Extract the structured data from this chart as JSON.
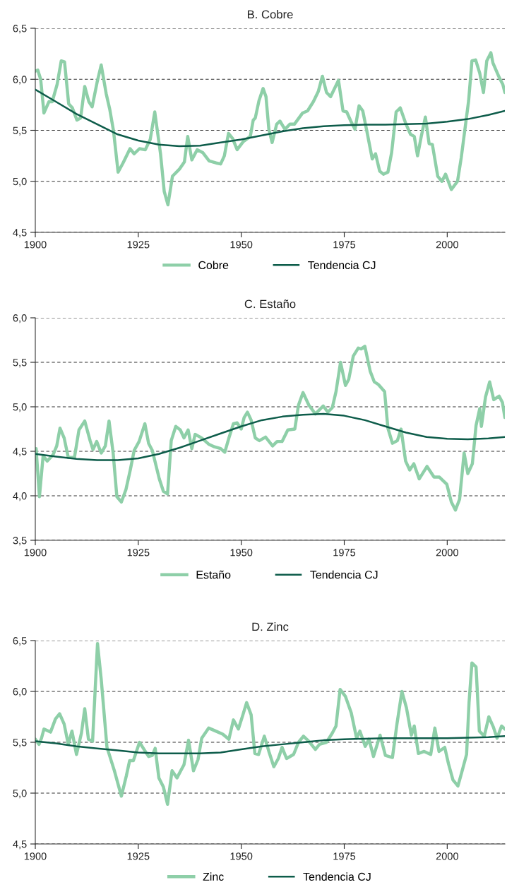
{
  "chart_data": [
    {
      "type": "line",
      "title": "B. Cobre",
      "xlim": [
        1900,
        2014
      ],
      "xticks": [
        1900,
        1925,
        1950,
        1975,
        2000
      ],
      "ylim": [
        4.5,
        6.5
      ],
      "yticks": [
        {
          "value": 4.5,
          "label": "4,5"
        },
        {
          "value": 5.0,
          "label": "5,0"
        },
        {
          "value": 5.5,
          "label": "5,5"
        },
        {
          "value": 6.0,
          "label": "6,0"
        },
        {
          "value": 6.5,
          "label": "6,5"
        }
      ],
      "grid": "y",
      "legend": "bottom",
      "series": [
        {
          "name": "Cobre",
          "color": "#8ecfa8",
          "x": [
            1900,
            1900.6,
            1901.3,
            1902.1,
            1903.3,
            1904.1,
            1905.3,
            1906.3,
            1907.1,
            1908.1,
            1909,
            1910.1,
            1911,
            1912,
            1913,
            1913.8,
            1915,
            1916,
            1917.2,
            1918.1,
            1919,
            1920.1,
            1921.3,
            1923,
            1924,
            1925.3,
            1926.7,
            1927.9,
            1929,
            1930.4,
            1931.3,
            1932.2,
            1933.3,
            1935,
            1936.2,
            1937,
            1938,
            1939.3,
            1940.7,
            1942.2,
            1943.9,
            1945,
            1945.9,
            1946.9,
            1947.9,
            1949,
            1950.5,
            1952.2,
            1952.9,
            1953.4,
            1954.3,
            1955.3,
            1956,
            1956.7,
            1957.5,
            1958.6,
            1959.4,
            1960.6,
            1961.8,
            1962.9,
            1964.9,
            1966.1,
            1967.5,
            1968.7,
            1969.7,
            1970.7,
            1971.7,
            1973.6,
            1974.7,
            1975.6,
            1976.6,
            1977.6,
            1978.6,
            1979.5,
            1980.5,
            1981.8,
            1982.6,
            1983.6,
            1984.5,
            1985.6,
            1986.5,
            1987.6,
            1988.6,
            1989.9,
            1991.1,
            1992,
            1992.8,
            1993.7,
            1994.7,
            1995.6,
            1996.4,
            1997.7,
            1998.7,
            1999.6,
            2001,
            2002.5,
            2003.4,
            2004.3,
            2005.2,
            2006,
            2006.9,
            2007.9,
            2008.8,
            2009.6,
            2010.6,
            2011.1,
            2012.6,
            2013.5,
            2014
          ],
          "values": [
            6.08,
            6.09,
            6.0,
            5.67,
            5.78,
            5.78,
            5.95,
            6.18,
            6.17,
            5.76,
            5.72,
            5.6,
            5.62,
            5.93,
            5.78,
            5.73,
            5.97,
            6.14,
            5.86,
            5.7,
            5.49,
            5.09,
            5.18,
            5.32,
            5.27,
            5.32,
            5.31,
            5.41,
            5.68,
            5.27,
            4.9,
            4.77,
            5.05,
            5.12,
            5.19,
            5.44,
            5.21,
            5.31,
            5.28,
            5.2,
            5.18,
            5.17,
            5.25,
            5.47,
            5.42,
            5.31,
            5.39,
            5.44,
            5.6,
            5.62,
            5.79,
            5.91,
            5.83,
            5.51,
            5.38,
            5.56,
            5.59,
            5.51,
            5.56,
            5.56,
            5.67,
            5.69,
            5.78,
            5.88,
            6.03,
            5.87,
            5.83,
            5.99,
            5.69,
            5.68,
            5.59,
            5.51,
            5.74,
            5.69,
            5.49,
            5.22,
            5.27,
            5.1,
            5.07,
            5.09,
            5.28,
            5.68,
            5.72,
            5.57,
            5.46,
            5.44,
            5.25,
            5.44,
            5.63,
            5.37,
            5.36,
            5.05,
            5.0,
            5.07,
            4.92,
            5.0,
            5.23,
            5.51,
            5.79,
            6.18,
            6.19,
            6.06,
            5.87,
            6.18,
            6.26,
            6.16,
            6.02,
            5.95,
            5.87
          ]
        },
        {
          "name": "Tendencia CJ",
          "color": "#0d5c4a",
          "x": [
            1900,
            1905,
            1910,
            1915,
            1920,
            1925,
            1930,
            1935,
            1940,
            1945,
            1950,
            1955,
            1960,
            1965,
            1970,
            1975,
            1980,
            1985,
            1990,
            1995,
            2000,
            2005,
            2010,
            2014
          ],
          "values": [
            5.9,
            5.78,
            5.66,
            5.56,
            5.46,
            5.4,
            5.36,
            5.345,
            5.35,
            5.38,
            5.41,
            5.45,
            5.49,
            5.52,
            5.54,
            5.55,
            5.555,
            5.555,
            5.56,
            5.565,
            5.585,
            5.61,
            5.65,
            5.69
          ]
        }
      ]
    },
    {
      "type": "line",
      "title": "C. Estaño",
      "xlim": [
        1900,
        2014
      ],
      "xticks": [
        1900,
        1925,
        1950,
        1975,
        2000
      ],
      "ylim": [
        3.5,
        6.0
      ],
      "yticks": [
        {
          "value": 3.5,
          "label": "3,5"
        },
        {
          "value": 4.0,
          "label": "4,0"
        },
        {
          "value": 4.5,
          "label": "4,5"
        },
        {
          "value": 5.0,
          "label": "5,0"
        },
        {
          "value": 5.5,
          "label": "5,5"
        },
        {
          "value": 6.0,
          "label": "6,0"
        }
      ],
      "grid": "y",
      "legend": "bottom",
      "series": [
        {
          "name": "Estaño",
          "color": "#8ecfa8",
          "x": [
            1900.2,
            1901,
            1901.9,
            1902.9,
            1904.3,
            1905.2,
            1906,
            1907,
            1908,
            1909.5,
            1910.6,
            1912,
            1913.3,
            1914,
            1914.9,
            1916,
            1917,
            1917.9,
            1918.9,
            1919.8,
            1920.9,
            1922,
            1923.1,
            1924,
            1925.2,
            1926.6,
            1927.5,
            1928.4,
            1930.1,
            1931.1,
            1932.1,
            1933,
            1934.1,
            1935.2,
            1936.1,
            1937.1,
            1938,
            1938.8,
            1940.4,
            1942.1,
            1943.5,
            1945,
            1946,
            1947,
            1948.1,
            1949,
            1950,
            1950.7,
            1951.5,
            1952.4,
            1953.4,
            1954.4,
            1955.9,
            1957.6,
            1958.7,
            1959.9,
            1961.3,
            1963,
            1963.9,
            1965,
            1966.4,
            1968,
            1969.9,
            1971,
            1972.1,
            1973,
            1974.1,
            1975.3,
            1976.1,
            1977.2,
            1978.4,
            1979.1,
            1980,
            1981.3,
            1982.3,
            1983.3,
            1984.8,
            1985.6,
            1986.7,
            1987.9,
            1988.8,
            1989.9,
            1990.9,
            1991.9,
            1993.2,
            1995.1,
            1996.8,
            1998.1,
            1999.9,
            2001,
            2002,
            2003,
            2004.1,
            2005,
            2006.1,
            2007,
            2007.9,
            2008.3,
            2009.3,
            2010.3,
            2011.3,
            2012.6,
            2013.4,
            2014
          ],
          "values": [
            4.53,
            3.99,
            4.45,
            4.39,
            4.46,
            4.56,
            4.76,
            4.65,
            4.43,
            4.43,
            4.74,
            4.84,
            4.62,
            4.52,
            4.61,
            4.48,
            4.56,
            4.84,
            4.48,
            3.99,
            3.93,
            4.07,
            4.3,
            4.51,
            4.61,
            4.81,
            4.59,
            4.51,
            4.19,
            4.05,
            4.02,
            4.62,
            4.78,
            4.74,
            4.65,
            4.74,
            4.53,
            4.69,
            4.65,
            4.58,
            4.55,
            4.53,
            4.49,
            4.65,
            4.81,
            4.82,
            4.75,
            4.88,
            4.94,
            4.85,
            4.65,
            4.62,
            4.66,
            4.56,
            4.61,
            4.61,
            4.74,
            4.75,
            5.02,
            5.16,
            5.02,
            4.92,
            5.01,
            4.94,
            4.99,
            5.17,
            5.5,
            5.24,
            5.31,
            5.57,
            5.66,
            5.65,
            5.68,
            5.4,
            5.28,
            5.25,
            5.17,
            4.76,
            4.59,
            4.62,
            4.75,
            4.39,
            4.29,
            4.36,
            4.19,
            4.33,
            4.21,
            4.21,
            4.13,
            3.93,
            3.84,
            3.96,
            4.48,
            4.25,
            4.36,
            4.79,
            4.98,
            4.78,
            5.11,
            5.28,
            5.08,
            5.12,
            5.05,
            4.88
          ]
        },
        {
          "name": "Tendencia CJ",
          "color": "#0d5c4a",
          "x": [
            1900,
            1905,
            1910,
            1915,
            1920,
            1925,
            1930,
            1935,
            1940,
            1945,
            1950,
            1955,
            1960,
            1965,
            1970,
            1975,
            1980,
            1985,
            1990,
            1995,
            2000,
            2005,
            2010,
            2014
          ],
          "values": [
            4.47,
            4.44,
            4.415,
            4.4,
            4.4,
            4.42,
            4.47,
            4.54,
            4.62,
            4.7,
            4.78,
            4.85,
            4.89,
            4.91,
            4.92,
            4.9,
            4.85,
            4.78,
            4.71,
            4.66,
            4.64,
            4.635,
            4.645,
            4.66
          ]
        }
      ]
    },
    {
      "type": "line",
      "title": "D. Zinc",
      "xlim": [
        1900,
        2014
      ],
      "xticks": [
        1900,
        1925,
        1950,
        1975,
        2000
      ],
      "ylim": [
        4.5,
        6.5
      ],
      "yticks": [
        {
          "value": 4.5,
          "label": "4,5"
        },
        {
          "value": 5.0,
          "label": "5,0"
        },
        {
          "value": 5.5,
          "label": "5,5"
        },
        {
          "value": 6.0,
          "label": "6,0"
        },
        {
          "value": 6.5,
          "label": "6,5"
        }
      ],
      "grid": "y",
      "legend": "bottom",
      "series": [
        {
          "name": "Zinc",
          "color": "#8ecfa8",
          "x": [
            1900,
            1900.9,
            1901.5,
            1902.1,
            1903.7,
            1904.9,
            1905.9,
            1907,
            1908,
            1908.9,
            1910,
            1911.2,
            1912,
            1912.9,
            1913.9,
            1915.1,
            1916,
            1917.4,
            1919.2,
            1920.9,
            1922.1,
            1922.9,
            1923.8,
            1925.3,
            1926.4,
            1927.5,
            1928.4,
            1929.1,
            1930,
            1931.1,
            1932.1,
            1933.2,
            1934.4,
            1936.1,
            1937.2,
            1938.4,
            1939.5,
            1940.4,
            1942.1,
            1943.8,
            1945.5,
            1947,
            1948.1,
            1949.3,
            1950.4,
            1951.3,
            1952.4,
            1953.3,
            1954.2,
            1955.6,
            1956.7,
            1957.9,
            1959,
            1959.9,
            1961,
            1962.7,
            1963.9,
            1965.1,
            1966.4,
            1968,
            1969,
            1970.7,
            1972.1,
            1973,
            1974,
            1975.3,
            1976.7,
            1978,
            1978.8,
            1980.1,
            1981,
            1982.1,
            1983.7,
            1985,
            1986.7,
            1987.8,
            1989,
            1990.1,
            1991.3,
            1992,
            1993,
            1994.4,
            1996,
            1997,
            1998,
            1999.4,
            2000.3,
            2001.4,
            2002.6,
            2003.5,
            2004.7,
            2005.3,
            2006,
            2007,
            2007.8,
            2009,
            2010.1,
            2011.2,
            2012.1,
            2013.2,
            2014
          ],
          "values": [
            5.53,
            5.48,
            5.54,
            5.63,
            5.6,
            5.73,
            5.78,
            5.68,
            5.48,
            5.61,
            5.38,
            5.59,
            5.83,
            5.53,
            5.51,
            6.47,
            6.12,
            5.45,
            5.22,
            4.97,
            5.17,
            5.32,
            5.32,
            5.5,
            5.43,
            5.36,
            5.37,
            5.44,
            5.15,
            5.06,
            4.89,
            5.22,
            5.15,
            5.28,
            5.52,
            5.22,
            5.33,
            5.54,
            5.64,
            5.61,
            5.58,
            5.53,
            5.72,
            5.63,
            5.77,
            5.89,
            5.77,
            5.39,
            5.38,
            5.56,
            5.41,
            5.26,
            5.34,
            5.45,
            5.34,
            5.38,
            5.5,
            5.56,
            5.51,
            5.43,
            5.48,
            5.5,
            5.59,
            5.66,
            6.02,
            5.95,
            5.79,
            5.54,
            5.61,
            5.46,
            5.53,
            5.36,
            5.57,
            5.37,
            5.35,
            5.68,
            6.0,
            5.84,
            5.57,
            5.66,
            5.39,
            5.41,
            5.38,
            5.64,
            5.41,
            5.45,
            5.29,
            5.13,
            5.07,
            5.2,
            5.38,
            5.89,
            6.28,
            6.24,
            5.61,
            5.56,
            5.75,
            5.65,
            5.54,
            5.66,
            5.63
          ]
        },
        {
          "name": "Tendencia CJ",
          "color": "#0d5c4a",
          "x": [
            1900,
            1905,
            1910,
            1915,
            1920,
            1925,
            1930,
            1935,
            1940,
            1945,
            1950,
            1955,
            1960,
            1965,
            1970,
            1975,
            1980,
            1985,
            1990,
            1995,
            2000,
            2005,
            2010,
            2014
          ],
          "values": [
            5.51,
            5.49,
            5.46,
            5.44,
            5.42,
            5.4,
            5.39,
            5.39,
            5.39,
            5.4,
            5.43,
            5.46,
            5.48,
            5.5,
            5.52,
            5.53,
            5.535,
            5.54,
            5.54,
            5.54,
            5.54,
            5.545,
            5.55,
            5.56
          ]
        }
      ]
    }
  ]
}
